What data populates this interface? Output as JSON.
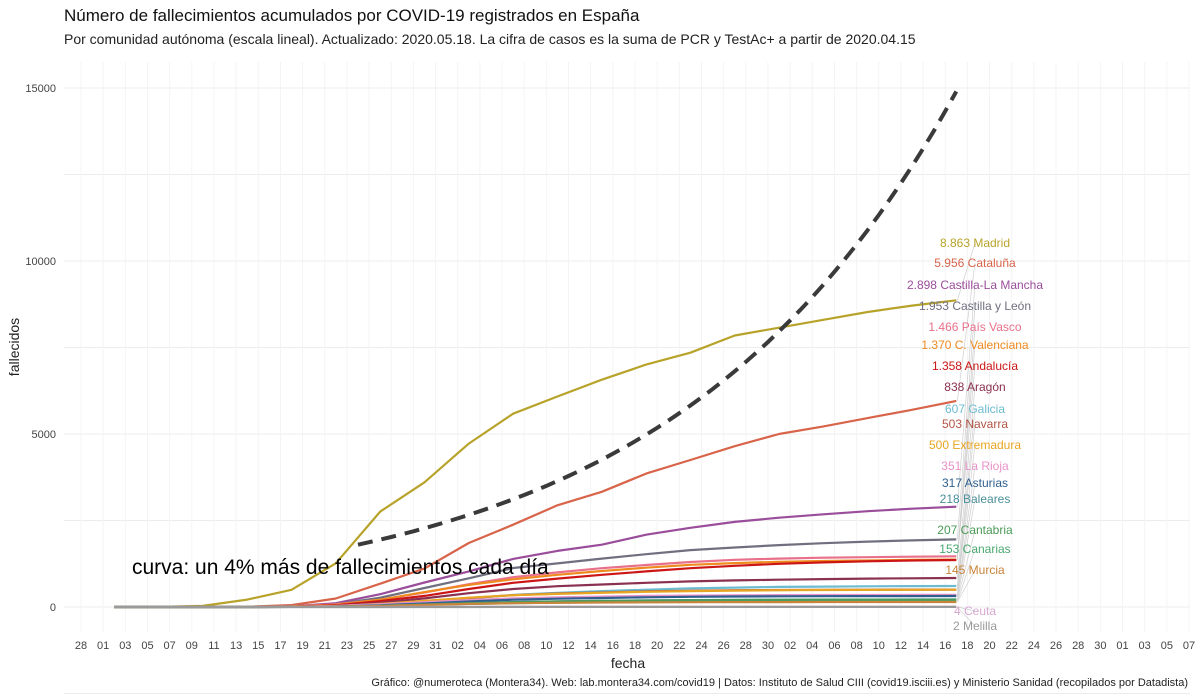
{
  "chart_data": {
    "type": "line",
    "title": "Número de fallecimientos acumulados por COVID-19 registrados en España",
    "subtitle": "Por comunidad autónoma (escala lineal). Actualizado: 2020.05.18. La cifra de casos es la suma de PCR y TestAc+ a partir de 2020.04.15",
    "caption": "Gráfico: @numeroteca (Montera34). Web: lab.montera34.com/covid19 | Datos: Instituto de Salud CIII (covid19.isciii.es) y Ministerio Sanidad (recopilados por Datadista)",
    "xlabel": "fecha",
    "ylabel": "fallecidos",
    "annotation": "curva: un 4% más de fallecimientos cada día",
    "x_tick_labels": [
      "28",
      "01",
      "03",
      "05",
      "07",
      "09",
      "11",
      "13",
      "15",
      "17",
      "19",
      "21",
      "23",
      "25",
      "27",
      "29",
      "31",
      "02",
      "04",
      "06",
      "08",
      "10",
      "12",
      "14",
      "16",
      "18",
      "20",
      "22",
      "24",
      "26",
      "28",
      "30",
      "02",
      "04",
      "06",
      "08",
      "10",
      "12",
      "14",
      "16",
      "18",
      "20",
      "22",
      "24",
      "26",
      "28",
      "30",
      "01",
      "03",
      "05",
      "07"
    ],
    "y_ticks": [
      0,
      5000,
      10000,
      15000
    ],
    "y_tick_labels": [
      "0",
      "5000",
      "10000",
      "15000"
    ],
    "ylim": [
      -700,
      15800
    ],
    "grid": true,
    "x": [
      "2020-03-02",
      "2020-03-06",
      "2020-03-10",
      "2020-03-14",
      "2020-03-18",
      "2020-03-22",
      "2020-03-26",
      "2020-03-30",
      "2020-04-03",
      "2020-04-07",
      "2020-04-11",
      "2020-04-15",
      "2020-04-19",
      "2020-04-23",
      "2020-04-27",
      "2020-05-01",
      "2020-05-05",
      "2020-05-09",
      "2020-05-13",
      "2020-05-17"
    ],
    "series": [
      {
        "name": "Madrid",
        "label": "8.863 Madrid",
        "color": "#b8a32a",
        "values": [
          0,
          3,
          31,
          214,
          498,
          1263,
          2757,
          3603,
          4723,
          5586,
          6084,
          6569,
          7007,
          7351,
          7848,
          8071,
          8300,
          8526,
          8712,
          8863
        ]
      },
      {
        "name": "Cataluña",
        "label": "5.956 Cataluña",
        "color": "#d8644a",
        "values": [
          0,
          0,
          0,
          8,
          55,
          245,
          672,
          1112,
          1849,
          2379,
          2938,
          3329,
          3855,
          4250,
          4647,
          5000,
          5220,
          5460,
          5700,
          5956
        ]
      },
      {
        "name": "Castilla-La Mancha",
        "label": "2.898 Castilla-La Mancha",
        "color": "#9a4d9a",
        "values": [
          0,
          0,
          0,
          0,
          20,
          110,
          370,
          708,
          1030,
          1391,
          1622,
          1800,
          2090,
          2290,
          2460,
          2580,
          2680,
          2770,
          2840,
          2898
        ]
      },
      {
        "name": "Castilla y León",
        "label": "1.953 Castilla y León",
        "color": "#6f6f80",
        "values": [
          0,
          0,
          0,
          0,
          15,
          80,
          270,
          548,
          830,
          1127,
          1260,
          1400,
          1525,
          1645,
          1720,
          1790,
          1845,
          1890,
          1925,
          1953
        ]
      },
      {
        "name": "País Vasco",
        "label": "1.466 País Vasco",
        "color": "#e8708a",
        "values": [
          0,
          0,
          0,
          0,
          20,
          80,
          210,
          420,
          660,
          860,
          1000,
          1120,
          1215,
          1300,
          1365,
          1400,
          1425,
          1440,
          1455,
          1466
        ]
      },
      {
        "name": "C. Valenciana",
        "label": "1.370 C. Valenciana",
        "color": "#ef8a1e",
        "values": [
          0,
          0,
          0,
          2,
          15,
          60,
          210,
          430,
          640,
          800,
          930,
          1040,
          1135,
          1220,
          1270,
          1305,
          1330,
          1345,
          1360,
          1370
        ]
      },
      {
        "name": "Andalucía",
        "label": "1.358 Andalucía",
        "color": "#cc1515",
        "values": [
          0,
          0,
          0,
          0,
          10,
          50,
          170,
          320,
          520,
          700,
          820,
          930,
          1030,
          1120,
          1190,
          1250,
          1290,
          1320,
          1345,
          1358
        ]
      },
      {
        "name": "Aragón",
        "label": "838 Aragón",
        "color": "#8a3050",
        "values": [
          0,
          0,
          0,
          0,
          5,
          30,
          120,
          250,
          400,
          520,
          600,
          650,
          700,
          740,
          770,
          790,
          805,
          820,
          830,
          838
        ]
      },
      {
        "name": "Galicia",
        "label": "607 Galicia",
        "color": "#6bbcd0",
        "values": [
          0,
          0,
          0,
          0,
          5,
          20,
          60,
          140,
          250,
          350,
          410,
          460,
          500,
          540,
          560,
          580,
          590,
          598,
          603,
          607
        ]
      },
      {
        "name": "Navarra",
        "label": "503 Navarra",
        "color": "#b05545",
        "values": [
          0,
          0,
          0,
          0,
          5,
          25,
          80,
          170,
          260,
          340,
          390,
          420,
          450,
          470,
          485,
          492,
          497,
          500,
          502,
          503
        ]
      },
      {
        "name": "Extremadura",
        "label": "500 Extremadura",
        "color": "#e8a522",
        "values": [
          0,
          0,
          0,
          0,
          5,
          25,
          90,
          180,
          270,
          340,
          380,
          410,
          440,
          460,
          475,
          485,
          490,
          495,
          498,
          500
        ]
      },
      {
        "name": "La Rioja",
        "label": "351 La Rioja",
        "color": "#e893c9",
        "values": [
          0,
          0,
          0,
          1,
          10,
          30,
          80,
          140,
          200,
          250,
          280,
          300,
          320,
          330,
          338,
          343,
          346,
          348,
          350,
          351
        ]
      },
      {
        "name": "Asturias",
        "label": "317 Asturias",
        "color": "#2f5f8f",
        "values": [
          0,
          0,
          0,
          0,
          3,
          15,
          50,
          100,
          160,
          210,
          240,
          260,
          280,
          295,
          303,
          308,
          312,
          314,
          316,
          317
        ]
      },
      {
        "name": "Baleares",
        "label": "218 Baleares",
        "color": "#4a8f9a",
        "values": [
          0,
          0,
          0,
          0,
          3,
          10,
          35,
          70,
          110,
          145,
          165,
          180,
          192,
          200,
          206,
          210,
          213,
          215,
          217,
          218
        ]
      },
      {
        "name": "Cantabria",
        "label": "207 Cantabria",
        "color": "#4a9a58",
        "values": [
          0,
          0,
          0,
          0,
          2,
          10,
          30,
          70,
          110,
          140,
          160,
          175,
          185,
          193,
          198,
          202,
          204,
          205,
          206,
          207
        ]
      },
      {
        "name": "Canarias",
        "label": "153 Canarias",
        "color": "#4aa870",
        "values": [
          0,
          0,
          0,
          1,
          5,
          15,
          35,
          65,
          90,
          110,
          125,
          135,
          142,
          147,
          150,
          151,
          152,
          152,
          153,
          153
        ]
      },
      {
        "name": "Murcia",
        "label": "145 Murcia",
        "color": "#c8843a",
        "values": [
          0,
          0,
          0,
          0,
          2,
          10,
          30,
          60,
          90,
          110,
          122,
          130,
          136,
          140,
          142,
          143,
          144,
          145,
          145,
          145
        ]
      },
      {
        "name": "Ceuta",
        "label": "4 Ceuta",
        "color": "#d7a7d1",
        "values": [
          0,
          0,
          0,
          0,
          0,
          0,
          1,
          2,
          3,
          4,
          4,
          4,
          4,
          4,
          4,
          4,
          4,
          4,
          4,
          4
        ]
      },
      {
        "name": "Melilla",
        "label": "2 Melilla",
        "color": "#9a9a9a",
        "values": [
          0,
          0,
          0,
          0,
          0,
          0,
          0,
          1,
          1,
          2,
          2,
          2,
          2,
          2,
          2,
          2,
          2,
          2,
          2,
          2
        ]
      }
    ],
    "reference_curve": {
      "label": "curva: un 4% más de fallecimientos cada día",
      "style": "dashed",
      "color": "#3a3a3a",
      "start_x": "2020-03-24",
      "start_y": 1800,
      "end_x": "2020-05-17",
      "end_y": 14900
    }
  }
}
